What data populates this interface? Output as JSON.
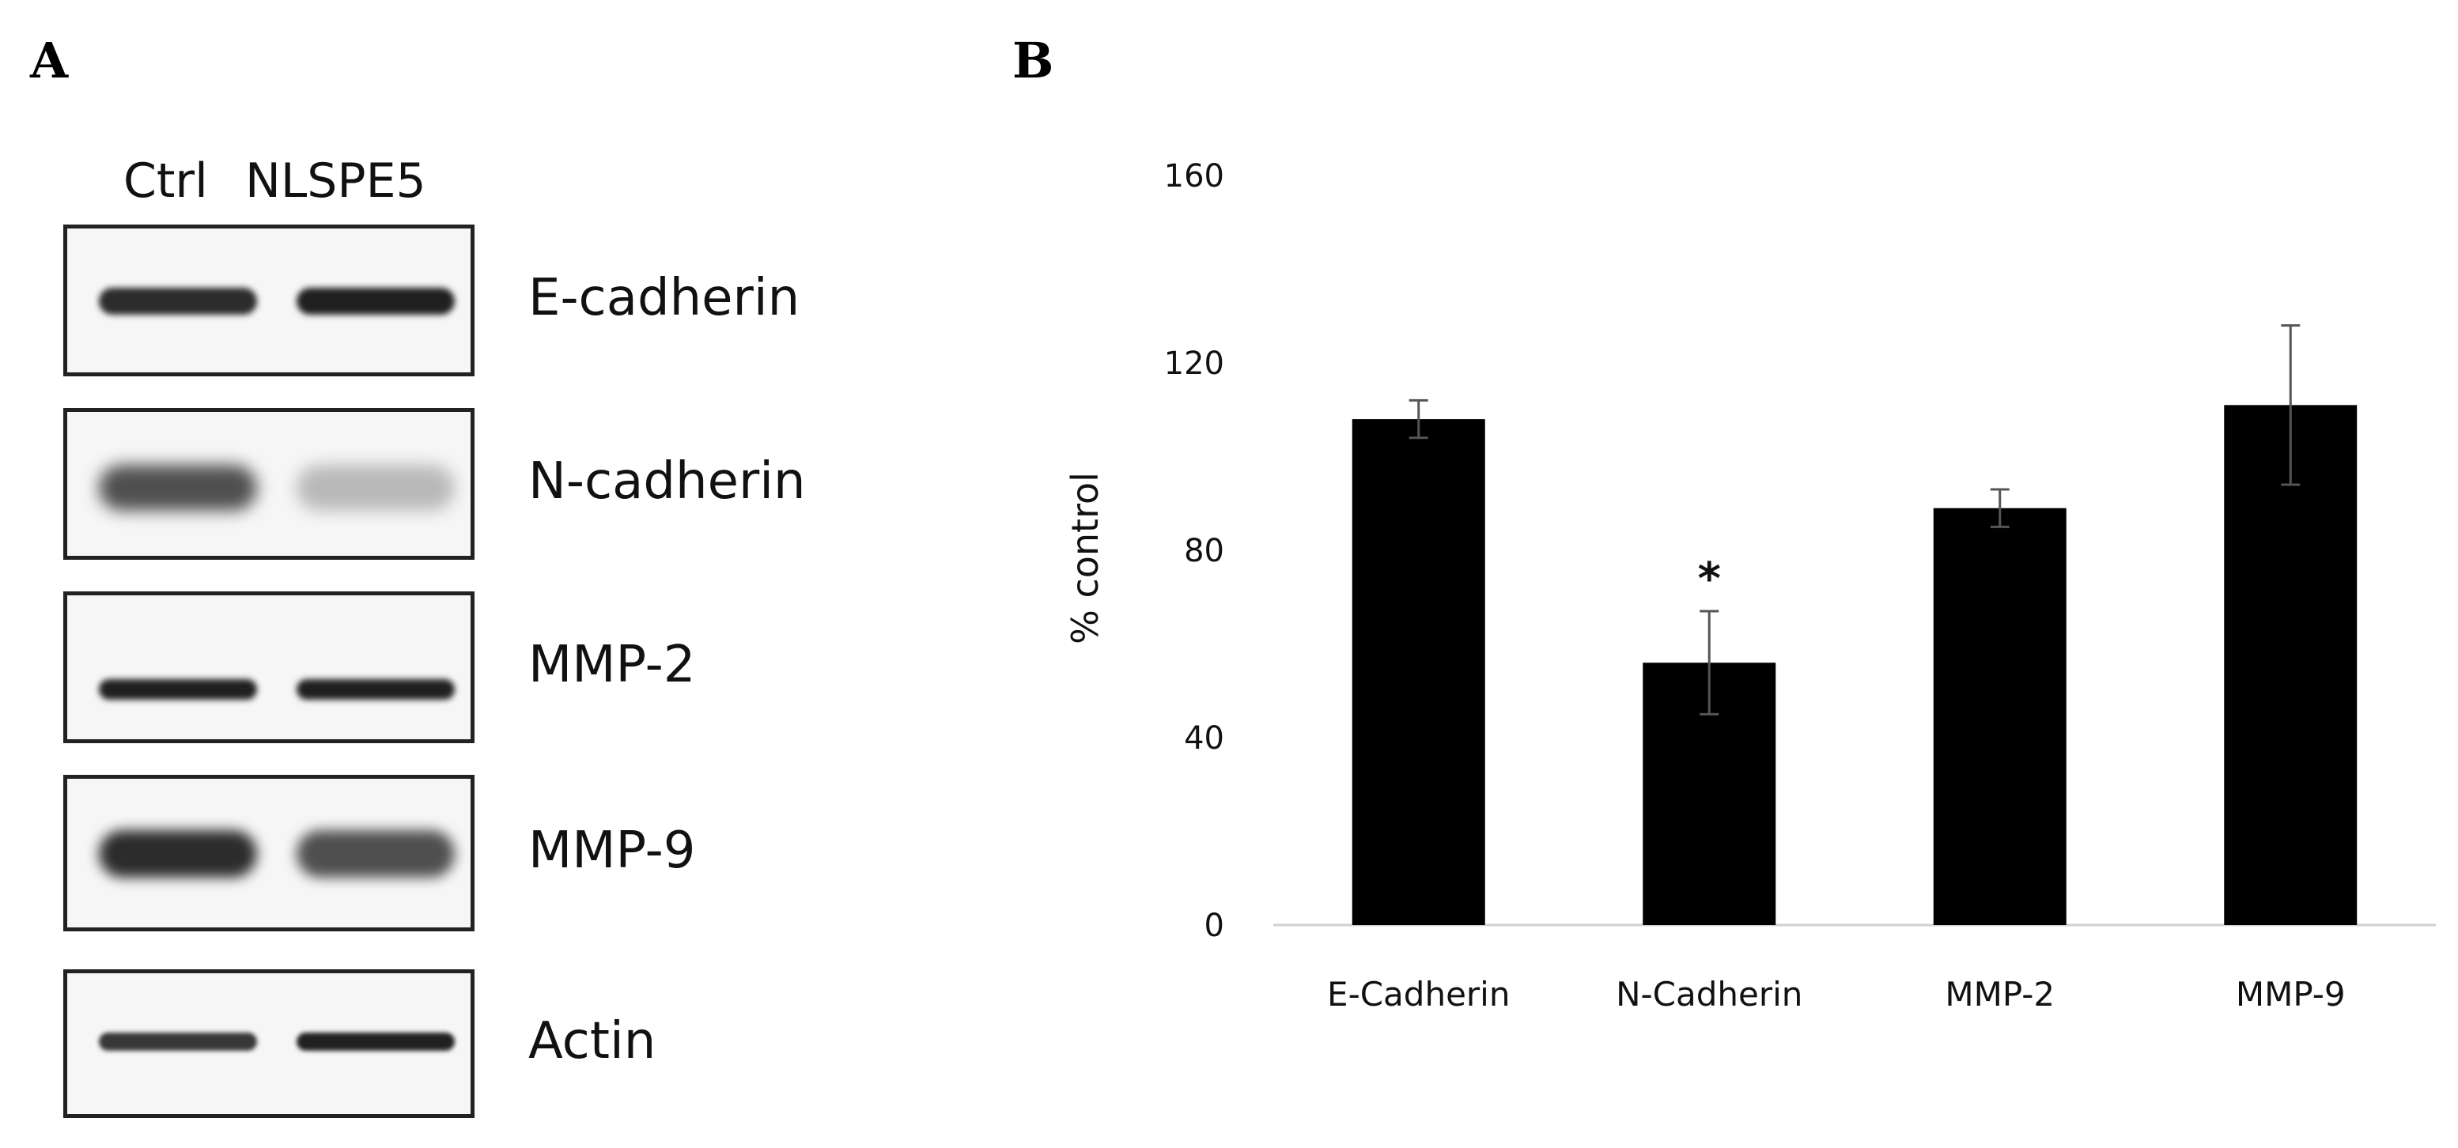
{
  "panels": {
    "a_label": "A",
    "b_label": "B"
  },
  "western_blot": {
    "lanes": [
      "Ctrl",
      "NLSPE5"
    ],
    "proteins": [
      {
        "label": "E-cadherin",
        "ctrl_intensity": 0.9,
        "treat_intensity": 0.95
      },
      {
        "label": "N-cadherin",
        "ctrl_intensity": 0.75,
        "treat_intensity": 0.3
      },
      {
        "label": "MMP-2",
        "ctrl_intensity": 0.95,
        "treat_intensity": 0.95
      },
      {
        "label": "MMP-9",
        "ctrl_intensity": 0.9,
        "treat_intensity": 0.75
      },
      {
        "label": "Actin",
        "ctrl_intensity": 0.85,
        "treat_intensity": 0.95
      }
    ]
  },
  "chart_data": {
    "type": "bar",
    "categories": [
      "E-Cadherin",
      "N-Cadherin",
      "MMP-2",
      "MMP-9"
    ],
    "values": [
      108,
      56,
      89,
      111
    ],
    "error": [
      4,
      11,
      4,
      17
    ],
    "annotations": [
      {
        "category": "N-Cadherin",
        "text": "*"
      }
    ],
    "title": "",
    "xlabel": "",
    "ylabel": "% control",
    "ylim": [
      0,
      160
    ],
    "yticks": [
      0,
      40,
      80,
      120,
      160
    ],
    "grid": false,
    "bar_color": "#000000"
  }
}
